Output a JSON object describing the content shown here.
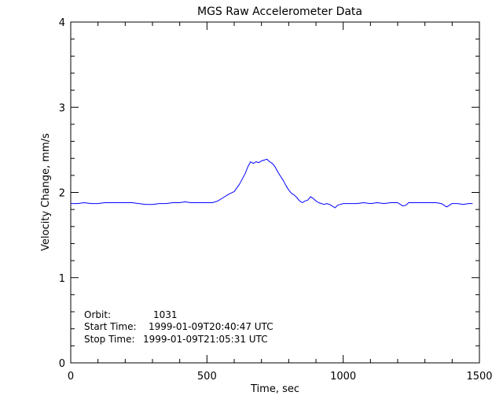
{
  "chart_data": {
    "type": "line",
    "title": "MGS Raw Accelerometer Data",
    "xlabel": "Time, sec",
    "ylabel": "Velocity Change, mm/s",
    "xlim": [
      0,
      1500
    ],
    "ylim": [
      0,
      4
    ],
    "x_ticks": [
      0,
      500,
      1000,
      1500
    ],
    "y_ticks": [
      0,
      1,
      2,
      3,
      4
    ],
    "x_tick_labels": [
      "0",
      "500",
      "1000",
      "1500"
    ],
    "y_tick_labels": [
      "0",
      "1",
      "2",
      "3",
      "4"
    ],
    "grid": false,
    "line_color": "#0000ff",
    "series": [
      {
        "x": [
          0,
          25,
          50,
          75,
          100,
          125,
          150,
          175,
          200,
          225,
          250,
          275,
          300,
          325,
          350,
          375,
          400,
          420,
          440,
          460,
          480,
          500,
          520,
          540,
          560,
          580,
          600,
          620,
          640,
          650,
          660,
          670,
          680,
          690,
          700,
          710,
          720,
          730,
          740,
          750,
          760,
          770,
          780,
          790,
          800,
          810,
          820,
          830,
          840,
          850,
          860,
          870,
          880,
          890,
          900,
          910,
          920,
          930,
          940,
          950,
          960,
          970,
          980,
          990,
          1000,
          1025,
          1050,
          1075,
          1100,
          1125,
          1150,
          1175,
          1200,
          1210,
          1220,
          1230,
          1240,
          1260,
          1280,
          1300,
          1320,
          1340,
          1360,
          1370,
          1380,
          1390,
          1400,
          1420,
          1440,
          1460,
          1475
        ],
        "y": [
          1.87,
          1.87,
          1.88,
          1.87,
          1.87,
          1.88,
          1.88,
          1.88,
          1.88,
          1.88,
          1.87,
          1.86,
          1.86,
          1.87,
          1.87,
          1.88,
          1.88,
          1.89,
          1.88,
          1.88,
          1.88,
          1.88,
          1.88,
          1.9,
          1.94,
          1.98,
          2.01,
          2.1,
          2.22,
          2.3,
          2.36,
          2.34,
          2.36,
          2.35,
          2.37,
          2.38,
          2.39,
          2.36,
          2.34,
          2.3,
          2.24,
          2.19,
          2.14,
          2.08,
          2.03,
          1.99,
          1.97,
          1.94,
          1.9,
          1.88,
          1.9,
          1.91,
          1.95,
          1.93,
          1.9,
          1.88,
          1.87,
          1.86,
          1.87,
          1.86,
          1.84,
          1.82,
          1.85,
          1.86,
          1.87,
          1.87,
          1.87,
          1.88,
          1.87,
          1.88,
          1.87,
          1.88,
          1.88,
          1.86,
          1.84,
          1.85,
          1.88,
          1.88,
          1.88,
          1.88,
          1.88,
          1.88,
          1.87,
          1.85,
          1.83,
          1.85,
          1.87,
          1.87,
          1.86,
          1.87,
          1.87
        ]
      }
    ],
    "annotations": {
      "orbit_label": "Orbit:",
      "orbit_value": "1031",
      "start_label": "Start Time:",
      "start_value": "1999-01-09T20:40:47 UTC",
      "stop_label": "Stop Time:",
      "stop_value": "1999-01-09T21:05:31 UTC"
    }
  }
}
